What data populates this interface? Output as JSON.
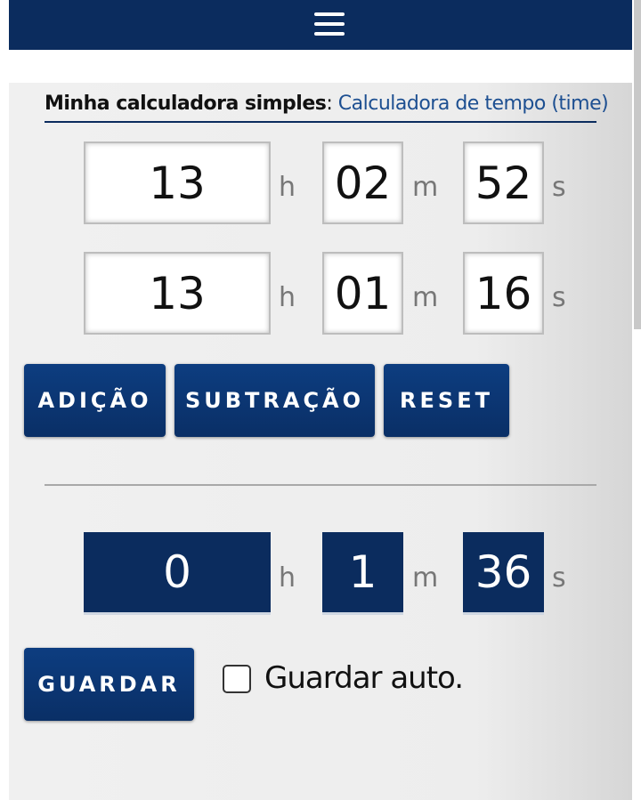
{
  "title": {
    "label": "Minha calculadora simples",
    "separator": ":",
    "subtitle": "Calculadora de tempo (time)"
  },
  "units": {
    "hours": "h",
    "minutes": "m",
    "seconds": "s"
  },
  "inputs": [
    {
      "hours": "13",
      "minutes": "02",
      "seconds": "52"
    },
    {
      "hours": "13",
      "minutes": "01",
      "seconds": "16"
    }
  ],
  "buttons": [
    "ADIÇÃO",
    "SUBTRAÇÃO",
    "RESET"
  ],
  "result": {
    "hours": "0",
    "minutes": "1",
    "seconds": "36"
  },
  "save_button": "GUARDAR",
  "auto_save": "Guardar auto."
}
